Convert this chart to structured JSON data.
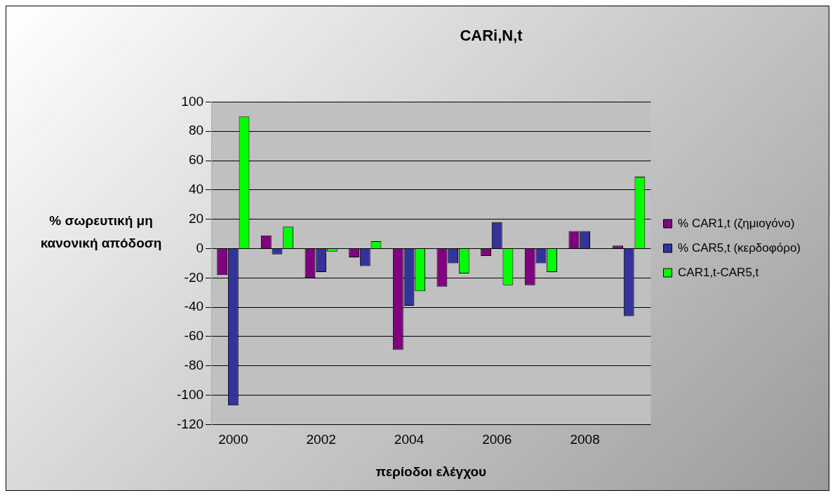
{
  "chart_data": {
    "type": "bar",
    "title": "CARi,N,t",
    "xlabel": "περίοδοι ελέγχου",
    "ylabel": "% σωρευτική μη κανονική απόδοση",
    "categories": [
      "2000",
      null,
      "2002",
      null,
      "2004",
      null,
      "2006",
      null,
      "2008",
      null
    ],
    "series": [
      {
        "name": "% CAR1,t (ζημιογόνο)",
        "color": "#800080",
        "values": [
          -18,
          9,
          -20,
          -6,
          -69,
          -26,
          -5,
          -25,
          12,
          2
        ]
      },
      {
        "name": "% CAR5,t (κερδοφόρο)",
        "color": "#333399",
        "values": [
          -107,
          -4,
          -16,
          -12,
          -39,
          -10,
          18,
          -10,
          12,
          -46
        ]
      },
      {
        "name": "CAR1,t-CAR5,t",
        "color": "#00ff00",
        "values": [
          90,
          15,
          -2,
          5,
          -29,
          -17,
          -25,
          -16,
          0,
          49
        ]
      }
    ],
    "ylim": [
      -120,
      100
    ],
    "yticks": [
      -120,
      -100,
      -80,
      -60,
      -40,
      -20,
      0,
      20,
      40,
      60,
      80,
      100
    ],
    "grid": "y",
    "legend": "right"
  }
}
